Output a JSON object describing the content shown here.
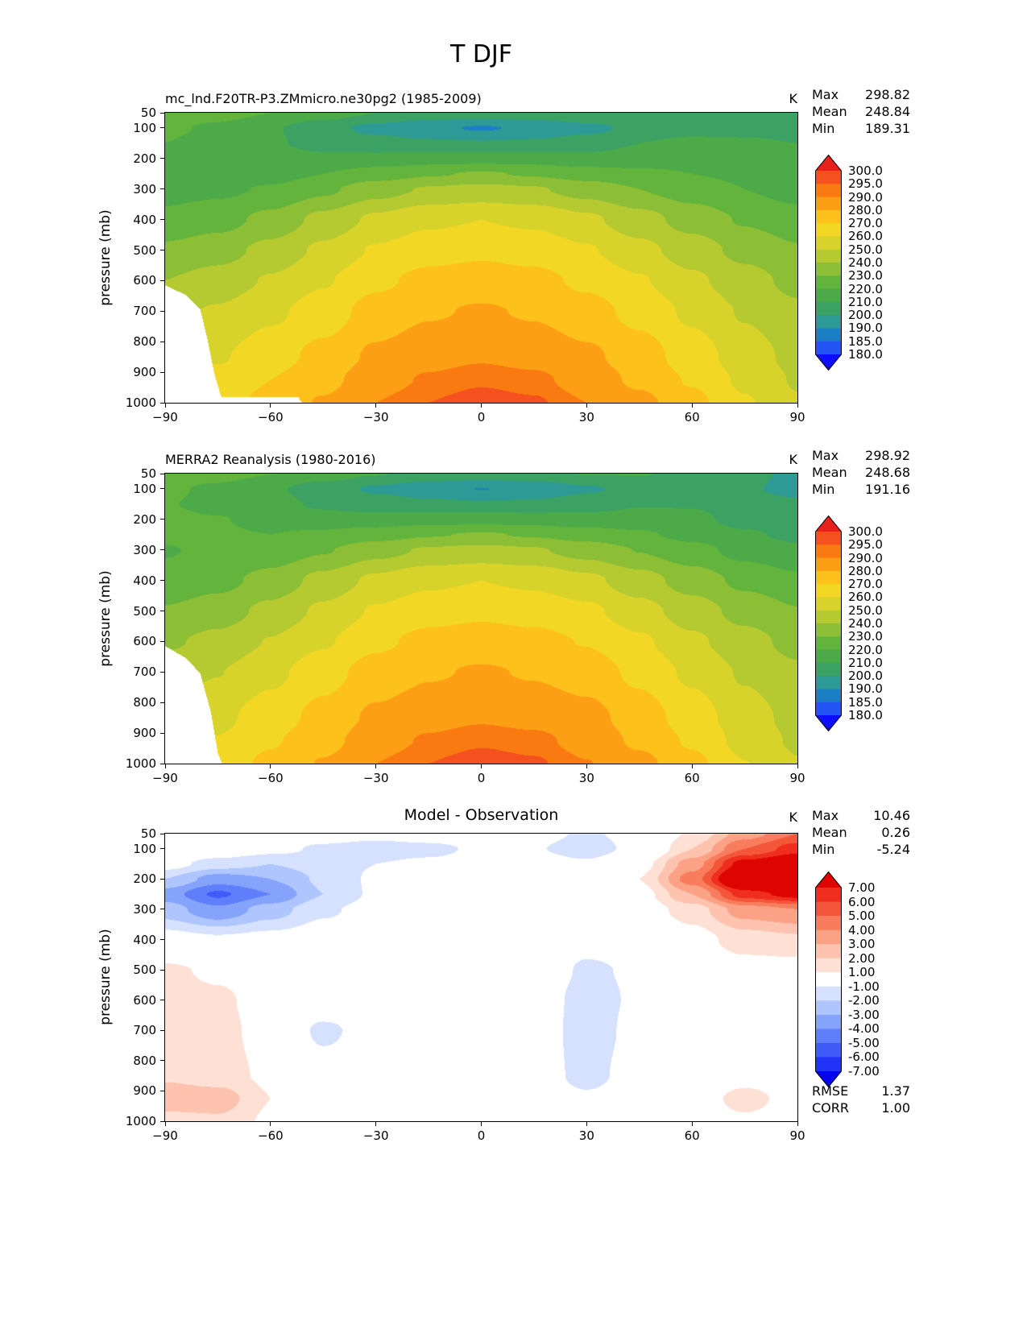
{
  "title": "T DJF",
  "axis": {
    "ylabel": "pressure (mb)",
    "ytick_labels": [
      "50",
      "100",
      "200",
      "300",
      "400",
      "500",
      "600",
      "700",
      "800",
      "900",
      "1000"
    ],
    "ytick_values": [
      50,
      100,
      200,
      300,
      400,
      500,
      600,
      700,
      800,
      900,
      1000
    ],
    "xtick_labels": [
      "−90",
      "−60",
      "−30",
      "0",
      "30",
      "60",
      "90"
    ],
    "xtick_values": [
      -90,
      -60,
      -30,
      0,
      30,
      60,
      90
    ]
  },
  "panels": [
    {
      "title": "mc_lnd.F20TR-P3.ZMmicro.ne30pg2 (1985-2009)",
      "unit": "K",
      "stats": [
        {
          "label": "Max",
          "value": "298.82"
        },
        {
          "label": "Mean",
          "value": "248.84"
        },
        {
          "label": "Min",
          "value": "189.31"
        }
      ],
      "colorbar_labels": [
        "300.0",
        "295.0",
        "290.0",
        "280.0",
        "270.0",
        "260.0",
        "250.0",
        "240.0",
        "230.0",
        "220.0",
        "210.0",
        "200.0",
        "190.0",
        "185.0",
        "180.0"
      ]
    },
    {
      "title": "MERRA2 Reanalysis (1980-2016)",
      "unit": "K",
      "stats": [
        {
          "label": "Max",
          "value": "298.92"
        },
        {
          "label": "Mean",
          "value": "248.68"
        },
        {
          "label": "Min",
          "value": "191.16"
        }
      ],
      "colorbar_labels": [
        "300.0",
        "295.0",
        "290.0",
        "280.0",
        "270.0",
        "260.0",
        "250.0",
        "240.0",
        "230.0",
        "220.0",
        "210.0",
        "200.0",
        "190.0",
        "185.0",
        "180.0"
      ]
    },
    {
      "title": "Model - Observation",
      "unit": "K",
      "stats": [
        {
          "label": "Max",
          "value": "10.46"
        },
        {
          "label": "Mean",
          "value": "0.26"
        },
        {
          "label": "Min",
          "value": "-5.24"
        }
      ],
      "extra_stats": [
        {
          "label": "RMSE",
          "value": "1.37"
        },
        {
          "label": "CORR",
          "value": "1.00"
        }
      ],
      "colorbar_labels": [
        "7.00",
        "6.00",
        "5.00",
        "4.00",
        "3.00",
        "2.00",
        "1.00",
        "-1.00",
        "-2.00",
        "-3.00",
        "-4.00",
        "-5.00",
        "-6.00",
        "-7.00"
      ]
    }
  ],
  "chart_data": {
    "type": "heatmap",
    "description": "Zonal-mean DJF temperature (K): model, MERRA2 reanalysis, and model-minus-observation difference on latitude vs pressure axes",
    "xlim_lat": [
      -90,
      90
    ],
    "ylim_mb": [
      1000,
      50
    ],
    "x_lats": [
      -90,
      -75,
      -60,
      -45,
      -30,
      -15,
      0,
      15,
      30,
      45,
      60,
      75,
      90
    ],
    "y_pressures_mb": [
      50,
      100,
      150,
      200,
      250,
      300,
      400,
      500,
      600,
      700,
      850,
      925,
      1000
    ],
    "temp_levels_K": [
      180,
      185,
      190,
      200,
      210,
      220,
      230,
      240,
      250,
      260,
      270,
      280,
      290,
      295,
      300
    ],
    "temp_colors": [
      "#0d0dff",
      "#2255f4",
      "#1b7fc3",
      "#2d9a96",
      "#3ba264",
      "#4caa48",
      "#63b43c",
      "#8cbe36",
      "#b5c930",
      "#d8d32b",
      "#f2d824",
      "#fdc11c",
      "#fd9f14",
      "#fa7a12",
      "#f4511e",
      "#e8211c"
    ],
    "diff_levels_K": [
      -7,
      -6,
      -5,
      -4,
      -3,
      -2,
      -1,
      1,
      2,
      3,
      4,
      5,
      6,
      7
    ],
    "diff_colors": [
      "#0404f0",
      "#2133f6",
      "#3f5bf8",
      "#5f7ffa",
      "#86a3fc",
      "#aec5fd",
      "#d5e1fe",
      "#ffffff",
      "#fee0d5",
      "#fdc3ae",
      "#fba186",
      "#f87d5e",
      "#f4563a",
      "#ef2e1d",
      "#de0500"
    ],
    "model_T": [
      [
        226,
        224,
        220,
        215,
        210,
        207,
        206,
        207,
        209,
        210,
        209,
        206,
        203
      ],
      [
        222,
        218,
        211,
        204,
        197,
        192,
        189,
        192,
        197,
        203,
        206,
        206,
        204
      ],
      [
        220,
        216,
        211,
        207,
        204,
        202,
        201,
        202,
        205,
        210,
        213,
        212,
        210
      ],
      [
        220,
        217,
        214,
        212,
        213,
        215,
        216,
        215,
        213,
        215,
        217,
        216,
        213
      ],
      [
        218,
        216,
        216,
        220,
        225,
        229,
        231,
        229,
        225,
        222,
        220,
        218,
        215
      ],
      [
        217,
        218,
        221,
        228,
        236,
        241,
        243,
        241,
        236,
        230,
        225,
        220,
        216
      ],
      [
        222,
        226,
        233,
        243,
        252,
        258,
        260,
        258,
        252,
        244,
        236,
        229,
        224
      ],
      [
        232,
        236,
        243,
        252,
        261,
        266,
        268,
        266,
        261,
        253,
        245,
        237,
        231
      ],
      [
        240,
        244,
        251,
        259,
        268,
        273,
        275,
        273,
        268,
        261,
        252,
        244,
        237
      ],
      [
        247,
        251,
        258,
        265,
        274,
        279,
        281,
        279,
        274,
        267,
        258,
        249,
        242
      ],
      [
        256,
        259,
        266,
        273,
        282,
        287,
        289,
        287,
        282,
        275,
        265,
        255,
        247
      ],
      [
        260,
        263,
        270,
        277,
        286,
        291,
        294,
        292,
        286,
        278,
        269,
        258,
        249
      ],
      [
        264,
        266,
        273,
        281,
        290,
        295,
        298,
        296,
        290,
        283,
        273,
        261,
        251
      ]
    ],
    "obs_T": [
      [
        225.8,
        223.9,
        220.1,
        215.4,
        210.6,
        207.4,
        206.2,
        207.5,
        210.2,
        210.5,
        207.8,
        202.5,
        198.0
      ],
      [
        221.7,
        218.0,
        211.6,
        205.2,
        198.5,
        193.3,
        189.8,
        192.9,
        198.6,
        203.6,
        204.0,
        201.0,
        197.5
      ],
      [
        220.5,
        217.5,
        213.0,
        208.5,
        205.0,
        202.8,
        201.5,
        202.4,
        205.8,
        209.5,
        209.5,
        204.5,
        201.5
      ],
      [
        222.0,
        220.5,
        217.0,
        213.8,
        213.8,
        215.4,
        216.2,
        215.2,
        213.4,
        214.0,
        212.5,
        206.5,
        202.7
      ],
      [
        221.5,
        221.2,
        220.0,
        222.0,
        225.8,
        229.3,
        231.0,
        229.0,
        225.3,
        221.5,
        217.0,
        211.5,
        207.5
      ],
      [
        219.5,
        221.8,
        223.5,
        229.2,
        236.5,
        241.2,
        243.0,
        241.0,
        236.2,
        229.7,
        223.5,
        216.5,
        212.0
      ],
      [
        222.5,
        226.8,
        233.6,
        243.3,
        252.2,
        258.0,
        260.0,
        258.0,
        252.5,
        244.3,
        235.5,
        227.5,
        222.2
      ],
      [
        230.8,
        235.2,
        242.7,
        252.0,
        261.1,
        266.0,
        268.0,
        266.0,
        262.2,
        253.8,
        245.0,
        236.5,
        230.5
      ],
      [
        238.5,
        242.8,
        250.5,
        258.8,
        268.0,
        273.0,
        275.0,
        273.2,
        269.5,
        261.8,
        252.0,
        243.7,
        236.7
      ],
      [
        245.4,
        249.7,
        257.4,
        266.3,
        274.3,
        279.0,
        281.0,
        279.2,
        275.6,
        267.6,
        258.0,
        248.8,
        241.8
      ],
      [
        254.2,
        257.6,
        265.2,
        273.2,
        282.0,
        287.0,
        289.0,
        287.3,
        283.4,
        275.4,
        265.0,
        254.5,
        246.7
      ],
      [
        257.2,
        260.4,
        269.0,
        276.6,
        286.0,
        291.0,
        294.0,
        292.2,
        286.8,
        278.2,
        268.7,
        256.6,
        248.5
      ],
      [
        262.5,
        264.2,
        272.2,
        280.7,
        290.0,
        295.0,
        298.0,
        296.0,
        290.3,
        283.0,
        272.7,
        260.2,
        250.6
      ]
    ],
    "diff_T": [
      [
        0.2,
        0.1,
        -0.1,
        -0.4,
        -0.6,
        -0.4,
        -0.2,
        -0.5,
        -1.2,
        -0.5,
        1.2,
        3.5,
        5.0
      ],
      [
        0.3,
        0.0,
        -0.6,
        -1.2,
        -1.5,
        -1.3,
        -0.8,
        -0.9,
        -1.6,
        -0.6,
        2.0,
        5.0,
        6.5
      ],
      [
        -0.5,
        -1.5,
        -2.0,
        -1.5,
        -1.0,
        -0.8,
        -0.5,
        -0.4,
        -0.8,
        0.5,
        3.5,
        7.5,
        8.5
      ],
      [
        -2.0,
        -3.5,
        -3.0,
        -1.8,
        -0.8,
        -0.4,
        -0.2,
        -0.2,
        -0.4,
        1.0,
        4.5,
        9.5,
        10.3
      ],
      [
        -3.5,
        -5.2,
        -4.0,
        -2.0,
        -0.8,
        -0.3,
        0.0,
        0.0,
        -0.3,
        0.5,
        3.0,
        6.5,
        7.5
      ],
      [
        -2.5,
        -3.8,
        -2.5,
        -1.2,
        -0.5,
        -0.2,
        0.0,
        0.0,
        -0.2,
        0.3,
        1.5,
        3.5,
        4.0
      ],
      [
        -0.5,
        -0.8,
        -0.6,
        -0.3,
        -0.2,
        0.0,
        0.0,
        0.0,
        -0.5,
        -0.3,
        0.5,
        1.5,
        1.8
      ],
      [
        1.2,
        0.8,
        0.3,
        0.0,
        -0.1,
        0.0,
        0.0,
        0.0,
        -1.2,
        -0.8,
        0.0,
        0.5,
        0.5
      ],
      [
        1.5,
        1.2,
        0.5,
        0.2,
        0.0,
        0.0,
        0.0,
        -0.2,
        -1.5,
        -0.8,
        0.0,
        0.3,
        0.3
      ],
      [
        1.6,
        1.3,
        0.6,
        -1.3,
        -0.3,
        0.0,
        0.0,
        -0.2,
        -1.6,
        -0.6,
        0.0,
        0.2,
        0.2
      ],
      [
        1.8,
        1.4,
        0.8,
        -0.2,
        0.0,
        0.0,
        0.0,
        -0.3,
        -1.4,
        -0.4,
        0.0,
        0.5,
        0.3
      ],
      [
        2.8,
        2.6,
        1.0,
        0.4,
        0.0,
        0.0,
        0.0,
        -0.2,
        -0.8,
        -0.2,
        0.3,
        1.4,
        0.5
      ],
      [
        1.5,
        1.8,
        0.8,
        0.3,
        0.0,
        0.0,
        0.0,
        0.0,
        -0.3,
        0.0,
        0.3,
        0.8,
        0.4
      ]
    ],
    "model_surface_mask": [
      [
        -90,
        615
      ],
      [
        -84,
        648
      ],
      [
        -80,
        695
      ],
      [
        -78,
        790
      ],
      [
        -76,
        905
      ],
      [
        -74,
        982
      ],
      [
        -52,
        982
      ],
      [
        -50,
        1025
      ]
    ],
    "obs_surface_mask": [
      [
        -90,
        615
      ],
      [
        -84,
        655
      ],
      [
        -80,
        705
      ],
      [
        -77,
        830
      ],
      [
        -75,
        965
      ],
      [
        -73,
        1025
      ]
    ]
  }
}
